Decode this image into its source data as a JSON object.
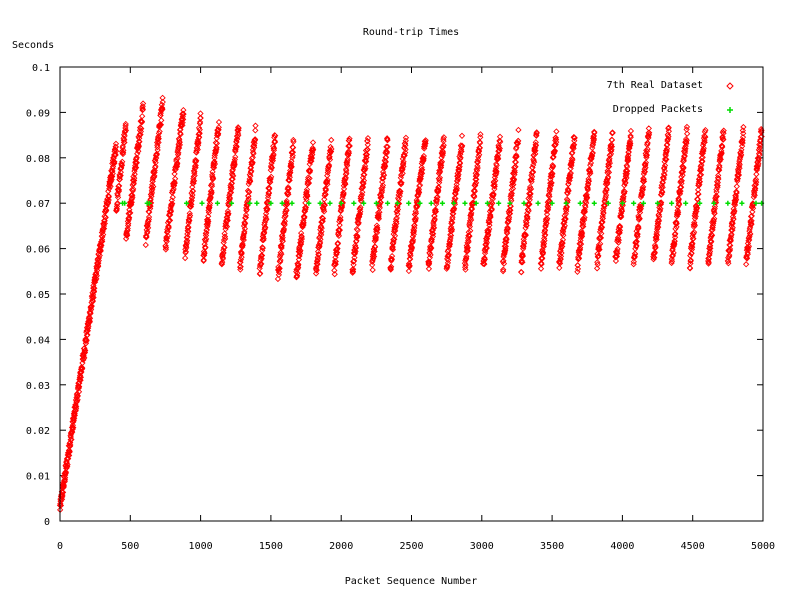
{
  "chart_data": {
    "type": "scatter",
    "title": "Round-trip Times",
    "xlabel": "Packet Sequence Number",
    "ylabel": "Seconds",
    "xlim": [
      0,
      5000
    ],
    "ylim": [
      0,
      0.1
    ],
    "xticks": [
      0,
      500,
      1000,
      1500,
      2000,
      2500,
      3000,
      3500,
      4000,
      4500,
      5000
    ],
    "yticks": [
      0,
      0.01,
      0.02,
      0.03,
      0.04,
      0.05,
      0.06,
      0.07,
      0.08,
      0.09,
      0.1
    ],
    "ytick_labels": [
      "0",
      "0.01",
      "0.02",
      "0.03",
      "0.04",
      "0.05",
      "0.06",
      "0.07",
      "0.08",
      "0.09",
      "0.1"
    ],
    "grid": false,
    "legend_position": "top-right",
    "series": [
      {
        "name": "7th Real Dataset",
        "color": "#ff0000",
        "marker": "diamond",
        "ramp_start": {
          "x": [
            0,
            400
          ],
          "y": [
            0.003,
            0.083
          ]
        },
        "sawtooth_cycles": [
          {
            "x": [
              400,
              470
            ],
            "y": [
              0.069,
              0.088
            ]
          },
          {
            "x": [
              470,
              590
            ],
            "y": [
              0.062,
              0.091
            ]
          },
          {
            "x": [
              610,
              730
            ],
            "y": [
              0.062,
              0.092
            ]
          },
          {
            "x": [
              750,
              880
            ],
            "y": [
              0.06,
              0.091
            ]
          },
          {
            "x": [
              890,
              1000
            ],
            "y": [
              0.059,
              0.089
            ]
          },
          {
            "x": [
              1020,
              1130
            ],
            "y": [
              0.058,
              0.088
            ]
          },
          {
            "x": [
              1150,
              1270
            ],
            "y": [
              0.057,
              0.087
            ]
          },
          {
            "x": [
              1280,
              1390
            ],
            "y": [
              0.056,
              0.086
            ]
          },
          {
            "x": [
              1420,
              1530
            ],
            "y": [
              0.055,
              0.085
            ]
          },
          {
            "x": [
              1550,
              1660
            ],
            "y": [
              0.054,
              0.083
            ]
          },
          {
            "x": [
              1680,
              1800
            ],
            "y": [
              0.054,
              0.083
            ]
          },
          {
            "x": [
              1820,
              1930
            ],
            "y": [
              0.055,
              0.083
            ]
          },
          {
            "x": [
              1950,
              2060
            ],
            "y": [
              0.055,
              0.084
            ]
          },
          {
            "x": [
              2080,
              2190
            ],
            "y": [
              0.055,
              0.084
            ]
          },
          {
            "x": [
              2220,
              2330
            ],
            "y": [
              0.056,
              0.084
            ]
          },
          {
            "x": [
              2350,
              2460
            ],
            "y": [
              0.056,
              0.084
            ]
          },
          {
            "x": [
              2480,
              2600
            ],
            "y": [
              0.056,
              0.084
            ]
          },
          {
            "x": [
              2620,
              2730
            ],
            "y": [
              0.056,
              0.084
            ]
          },
          {
            "x": [
              2750,
              2860
            ],
            "y": [
              0.056,
              0.084
            ]
          },
          {
            "x": [
              2880,
              2990
            ],
            "y": [
              0.056,
              0.084
            ]
          },
          {
            "x": [
              3010,
              3130
            ],
            "y": [
              0.056,
              0.084
            ]
          },
          {
            "x": [
              3150,
              3260
            ],
            "y": [
              0.056,
              0.085
            ]
          },
          {
            "x": [
              3280,
              3390
            ],
            "y": [
              0.056,
              0.085
            ]
          },
          {
            "x": [
              3420,
              3530
            ],
            "y": [
              0.056,
              0.085
            ]
          },
          {
            "x": [
              3550,
              3660
            ],
            "y": [
              0.056,
              0.085
            ]
          },
          {
            "x": [
              3680,
              3800
            ],
            "y": [
              0.056,
              0.085
            ]
          },
          {
            "x": [
              3820,
              3930
            ],
            "y": [
              0.057,
              0.085
            ]
          },
          {
            "x": [
              3950,
              4060
            ],
            "y": [
              0.057,
              0.085
            ]
          },
          {
            "x": [
              4080,
              4190
            ],
            "y": [
              0.057,
              0.086
            ]
          },
          {
            "x": [
              4220,
              4330
            ],
            "y": [
              0.057,
              0.086
            ]
          },
          {
            "x": [
              4350,
              4460
            ],
            "y": [
              0.057,
              0.086
            ]
          },
          {
            "x": [
              4480,
              4590
            ],
            "y": [
              0.057,
              0.086
            ]
          },
          {
            "x": [
              4610,
              4720
            ],
            "y": [
              0.057,
              0.086
            ]
          },
          {
            "x": [
              4750,
              4860
            ],
            "y": [
              0.057,
              0.086
            ]
          },
          {
            "x": [
              4880,
              4990
            ],
            "y": [
              0.057,
              0.086
            ]
          }
        ]
      },
      {
        "name": "Dropped Packets",
        "color": "#00dd00",
        "marker": "plus",
        "points": [
          [
            445,
            0.07
          ],
          [
            460,
            0.07
          ],
          [
            620,
            0.07
          ],
          [
            635,
            0.07
          ],
          [
            900,
            0.07
          ],
          [
            1010,
            0.07
          ],
          [
            1120,
            0.07
          ],
          [
            1220,
            0.07
          ],
          [
            1350,
            0.07
          ],
          [
            1400,
            0.07
          ],
          [
            1500,
            0.07
          ],
          [
            1580,
            0.07
          ],
          [
            1650,
            0.07
          ],
          [
            1770,
            0.07
          ],
          [
            1850,
            0.07
          ],
          [
            1920,
            0.07
          ],
          [
            2000,
            0.07
          ],
          [
            2090,
            0.07
          ],
          [
            2160,
            0.07
          ],
          [
            2250,
            0.07
          ],
          [
            2330,
            0.07
          ],
          [
            2400,
            0.07
          ],
          [
            2480,
            0.07
          ],
          [
            2560,
            0.07
          ],
          [
            2640,
            0.07
          ],
          [
            2720,
            0.07
          ],
          [
            2800,
            0.07
          ],
          [
            2880,
            0.07
          ],
          [
            2960,
            0.07
          ],
          [
            3040,
            0.07
          ],
          [
            3120,
            0.07
          ],
          [
            3200,
            0.07
          ],
          [
            3300,
            0.07
          ],
          [
            3400,
            0.07
          ],
          [
            3500,
            0.07
          ],
          [
            3600,
            0.07
          ],
          [
            3700,
            0.07
          ],
          [
            3800,
            0.07
          ],
          [
            3900,
            0.07
          ],
          [
            4000,
            0.07
          ],
          [
            4080,
            0.07
          ],
          [
            4150,
            0.07
          ],
          [
            4250,
            0.07
          ],
          [
            4350,
            0.07
          ],
          [
            4450,
            0.07
          ],
          [
            4550,
            0.07
          ],
          [
            4650,
            0.07
          ],
          [
            4750,
            0.07
          ],
          [
            4850,
            0.07
          ],
          [
            4950,
            0.07
          ],
          [
            4990,
            0.07
          ]
        ]
      }
    ]
  }
}
